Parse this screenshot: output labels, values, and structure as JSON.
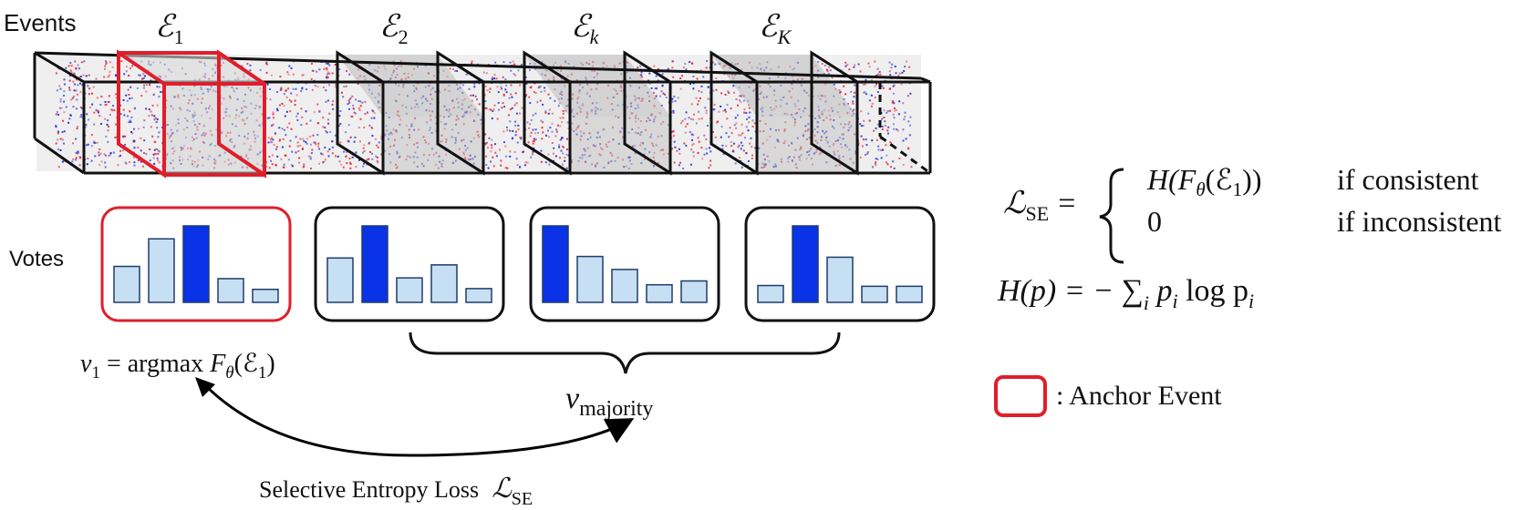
{
  "labels": {
    "events": "Events",
    "votes": "Votes",
    "loss_caption": "Selective Entropy Loss",
    "anchor_legend": ": Anchor Event"
  },
  "event_labels": [
    "ℰ",
    "1",
    "ℰ",
    "2",
    "ℰ",
    "k",
    "ℰ",
    "K"
  ],
  "formulas": {
    "v1_lhs": "v",
    "v1_sub": "1",
    "v1_eq": " = argmax ",
    "v1_F": "F",
    "v1_theta": "θ",
    "v1_arg": "(ℰ",
    "v1_arg_sub": "1",
    "v1_close": ")",
    "vmaj": "v",
    "vmaj_sub": "majority",
    "loss_L": "ℒ",
    "loss_sub": "SE",
    "lse_L": "ℒ",
    "lse_sub": "SE",
    "lse_eq": "=",
    "case1_expr_a": "H(F",
    "case1_theta": "θ",
    "case1_expr_b": "(ℰ",
    "case1_sub": "1",
    "case1_expr_c": "))",
    "case1_cond": "if consistent",
    "case2_expr": "0",
    "case2_cond": "if inconsistent",
    "h_lhs": "H(p) = − ∑",
    "h_i": "i",
    "h_rhs": " p",
    "h_pi_sub": "i",
    "h_log": " log p",
    "h_log_sub": "i"
  },
  "vote_histograms": [
    {
      "name": "anchor",
      "values": [
        0.47,
        0.83,
        1.0,
        0.31,
        0.17
      ],
      "max_index": 2
    },
    {
      "name": "event-2",
      "values": [
        0.58,
        1.0,
        0.32,
        0.49,
        0.18
      ],
      "max_index": 1
    },
    {
      "name": "event-k",
      "values": [
        1.0,
        0.6,
        0.43,
        0.23,
        0.28
      ],
      "max_index": 0
    },
    {
      "name": "event-K",
      "values": [
        0.22,
        1.0,
        0.59,
        0.21,
        0.21
      ],
      "max_index": 1
    }
  ],
  "colors": {
    "anchor_red": "#e01e2a",
    "bar_highlight": "#0a32e6",
    "bar_light": "#c6dff2",
    "bar_stroke": "#203c6a",
    "event_blue": "#1a2bd6",
    "event_red": "#e8202f",
    "slab_fill": "#c8c8c8"
  }
}
